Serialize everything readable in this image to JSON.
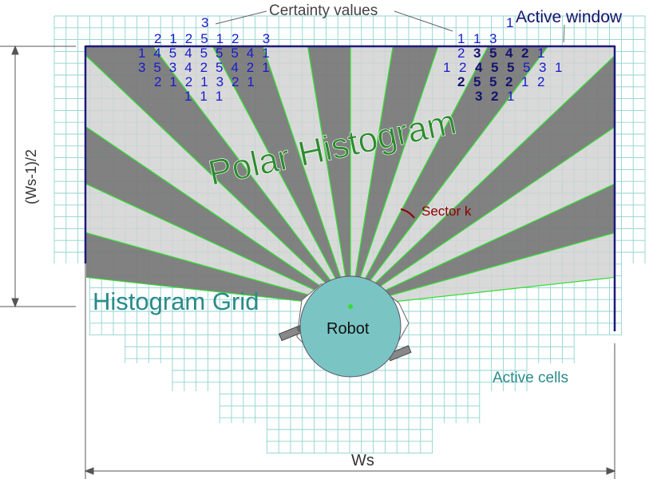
{
  "labels": {
    "certainty_values": "Certainty values",
    "active_window": "Active window",
    "polar_histogram": "Polar Histogram",
    "histogram_grid": "Histogram Grid",
    "robot": "Robot",
    "active_cells": "Active cells",
    "sector_k": "Sector k",
    "half_width": "(Ws-1)/2",
    "window_width": "Ws"
  },
  "colors": {
    "grid": "#8fd3cf",
    "window_frame": "#1a1a7a",
    "sector_dark": "#7a7a7a",
    "sector_light": "#d2d2d2",
    "ray": "#33dd33",
    "polar_text": "#2e8b2e",
    "grid_text": "#2a8a8a",
    "certainty_digits": "#1a1acc",
    "dark_digits": "#14146e",
    "robot_fill": "#7bc4c4",
    "sector_k": "#8b0000"
  },
  "certainty_left": [
    [
      "2",
      "1",
      "2",
      "5",
      "1",
      "2",
      "",
      "3"
    ],
    [
      "1",
      "4",
      "5",
      "4",
      "5",
      "5",
      "5",
      "4",
      "1"
    ],
    [
      "3",
      "5",
      "3",
      "4",
      "2",
      "5",
      "4",
      "2",
      "1"
    ],
    [
      "2",
      "1",
      "2",
      "1",
      "3",
      "2",
      "1"
    ],
    [
      "1",
      "1",
      "1"
    ],
    [
      "3"
    ]
  ],
  "certainty_right": [
    [
      "1",
      "1",
      "3"
    ],
    [
      "2",
      "3",
      "5",
      "4",
      "2",
      "1"
    ],
    [
      "1",
      "2",
      "4",
      "5",
      "5",
      "5",
      "3",
      "1"
    ],
    [
      "2",
      "5",
      "5",
      "2",
      "1",
      "2"
    ],
    [
      "3",
      "2",
      "1"
    ],
    [
      "1"
    ]
  ]
}
